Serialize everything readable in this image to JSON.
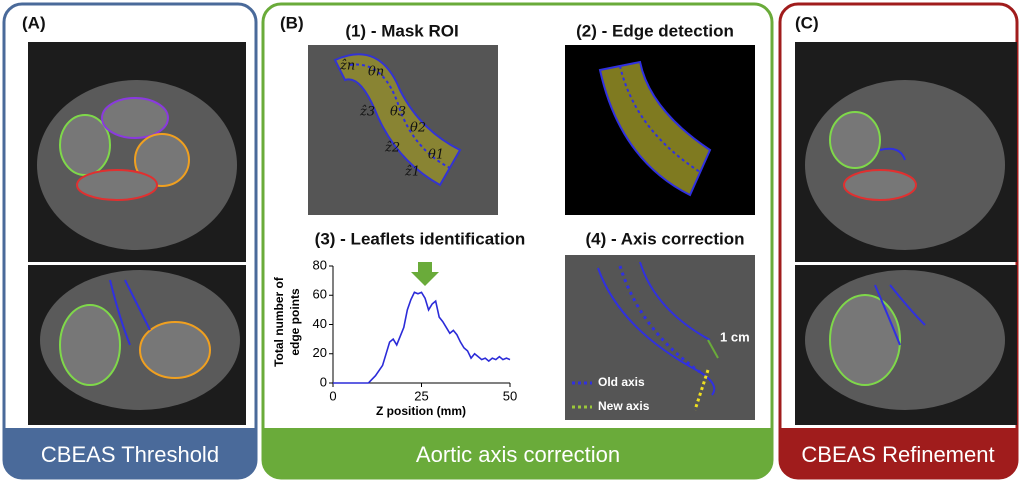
{
  "panels": [
    {
      "label": "(A)",
      "footer": "CBEAS Threshold"
    },
    {
      "label": "(B)",
      "footer": "Aortic axis correction",
      "steps": [
        "(1) - Mask ROI",
        "(2) - Edge detection",
        "(3) - Leaflets identification",
        "(4) - Axis correction"
      ],
      "mask_labels": [
        "ẑn",
        "θn",
        "ẑ3",
        "θ3",
        "θ2",
        "ẑ2",
        "θ1",
        "ẑ1"
      ],
      "axis_labels": {
        "distance": "1 cm",
        "old": "Old axis",
        "new": "New axis"
      }
    },
    {
      "label": "(C)",
      "footer": "CBEAS Refinement"
    }
  ],
  "plot": {
    "type": "line",
    "ylabel": [
      "Total number of",
      "edge points"
    ],
    "xlabel": "Z position (mm)",
    "xlim": [
      0,
      50
    ],
    "xticks": [
      0,
      25,
      50
    ],
    "ylim": [
      0,
      80
    ],
    "yticks": [
      0,
      20,
      40,
      60,
      80
    ],
    "color": "#2b2bd8",
    "x": [
      0,
      10,
      12,
      14,
      16,
      17,
      18,
      19,
      20,
      21,
      22,
      23,
      24,
      25,
      26,
      27,
      28,
      29,
      30,
      31,
      32,
      33,
      34,
      35,
      36,
      37,
      38,
      39,
      40,
      41,
      42,
      43,
      44,
      45,
      46,
      47,
      48,
      49,
      50
    ],
    "values": [
      0,
      0,
      5,
      12,
      28,
      30,
      26,
      32,
      38,
      50,
      57,
      62,
      61,
      62,
      58,
      50,
      54,
      56,
      45,
      42,
      38,
      34,
      36,
      33,
      28,
      24,
      22,
      17,
      20,
      18,
      16,
      17,
      15,
      17,
      16,
      18,
      16,
      17,
      16
    ]
  }
}
